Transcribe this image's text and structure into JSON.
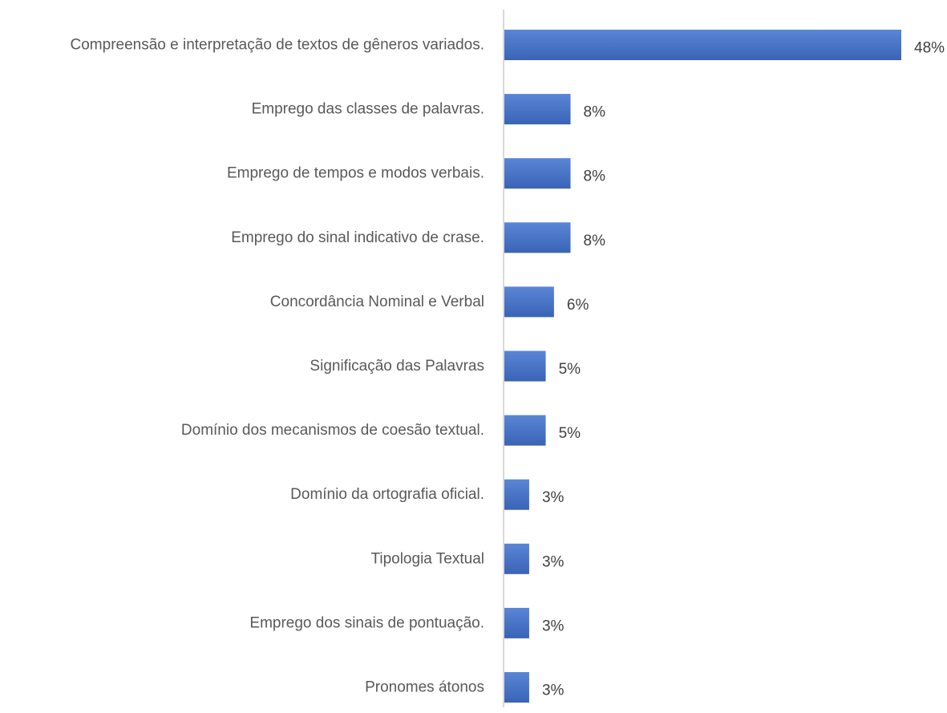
{
  "chart_data": {
    "type": "bar",
    "orientation": "horizontal",
    "title": "",
    "xlabel": "",
    "ylabel": "",
    "xlim": [
      0,
      48
    ],
    "grid": false,
    "legend": "none",
    "categories": [
      "Compreensão e interpretação de textos de gêneros variados.",
      "Emprego das classes de palavras.",
      "Emprego de tempos e modos verbais.",
      "Emprego do sinal indicativo de crase.",
      "Concordância Nominal e Verbal",
      "Significação das Palavras",
      "Domínio dos mecanismos de coesão textual.",
      "Domínio da ortografia oficial.",
      "Tipologia Textual",
      "Emprego dos sinais de pontuação.",
      "Pronomes átonos"
    ],
    "values": [
      48,
      8,
      8,
      8,
      6,
      5,
      5,
      3,
      3,
      3,
      3
    ],
    "data_labels": [
      "48%",
      "8%",
      "8%",
      "8%",
      "6%",
      "5%",
      "5%",
      "3%",
      "3%",
      "3%",
      "3%"
    ],
    "colors": {
      "bar_top": "#5a86d6",
      "bar_bottom": "#3a63b6",
      "axis": "#d9d9d9",
      "label_text": "#595959",
      "value_text": "#404040"
    }
  }
}
